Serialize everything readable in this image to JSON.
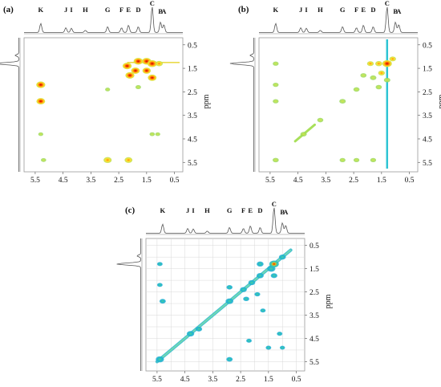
{
  "chart_data": [
    {
      "type": "heatmap",
      "panel_label": "(a)",
      "axis_unit": "ppm",
      "x_ticks": [
        "5.5",
        "4.5",
        "3.5",
        "2.5",
        "1.5",
        "0.5"
      ],
      "y_ticks": [
        "0.5",
        "1.5",
        "2.5",
        "3.5",
        "4.5",
        "5.5"
      ],
      "peak_labels": [
        {
          "text": "K",
          "x": 5.3
        },
        {
          "text": "J",
          "x": 4.4
        },
        {
          "text": "I",
          "x": 4.2
        },
        {
          "text": "H",
          "x": 3.7
        },
        {
          "text": "G",
          "x": 2.9
        },
        {
          "text": "F",
          "x": 2.4
        },
        {
          "text": "E",
          "x": 2.15
        },
        {
          "text": "D",
          "x": 1.8
        },
        {
          "text": "C",
          "x": 1.3
        },
        {
          "text": "B",
          "x": 1.0
        },
        {
          "text": "A",
          "x": 0.88
        }
      ],
      "peaks": [
        {
          "x": 5.3,
          "y": 2.2,
          "i": 0.9
        },
        {
          "x": 5.3,
          "y": 2.9,
          "i": 0.85
        },
        {
          "x": 5.3,
          "y": 4.3,
          "i": 0.2
        },
        {
          "x": 5.2,
          "y": 5.4,
          "i": 0.25
        },
        {
          "x": 2.9,
          "y": 5.4,
          "i": 0.75
        },
        {
          "x": 2.15,
          "y": 5.4,
          "i": 0.7
        },
        {
          "x": 2.2,
          "y": 1.4,
          "i": 0.9
        },
        {
          "x": 1.8,
          "y": 1.2,
          "i": 0.95
        },
        {
          "x": 1.5,
          "y": 1.2,
          "i": 0.95
        },
        {
          "x": 1.3,
          "y": 1.3,
          "i": 1.0
        },
        {
          "x": 1.9,
          "y": 1.6,
          "i": 0.85
        },
        {
          "x": 1.5,
          "y": 1.6,
          "i": 0.8
        },
        {
          "x": 2.1,
          "y": 1.8,
          "i": 0.9
        },
        {
          "x": 1.3,
          "y": 1.9,
          "i": 0.85
        },
        {
          "x": 1.05,
          "y": 1.3,
          "i": 0.6
        },
        {
          "x": 1.8,
          "y": 2.3,
          "i": 0.3
        },
        {
          "x": 1.3,
          "y": 4.3,
          "i": 0.25
        },
        {
          "x": 1.1,
          "y": 4.3,
          "i": 0.2
        },
        {
          "x": 2.9,
          "y": 2.4,
          "i": 0.2
        }
      ]
    },
    {
      "type": "heatmap",
      "panel_label": "(b)",
      "axis_unit": "ppm",
      "x_ticks": [
        "5.5",
        "4.5",
        "3.5",
        "2.5",
        "1.5",
        "0.5"
      ],
      "y_ticks": [
        "0.5",
        "1.5",
        "2.5",
        "3.5",
        "4.5",
        "5.5"
      ],
      "peak_labels": [
        {
          "text": "K",
          "x": 5.3
        },
        {
          "text": "J",
          "x": 4.4
        },
        {
          "text": "I",
          "x": 4.2
        },
        {
          "text": "H",
          "x": 3.7
        },
        {
          "text": "G",
          "x": 2.9
        },
        {
          "text": "F",
          "x": 2.4
        },
        {
          "text": "E",
          "x": 2.15
        },
        {
          "text": "D",
          "x": 1.8
        },
        {
          "text": "C",
          "x": 1.3
        },
        {
          "text": "B",
          "x": 1.0
        },
        {
          "text": "A",
          "x": 0.88
        }
      ],
      "peaks": [
        {
          "x": 5.3,
          "y": 1.3,
          "i": 0.35
        },
        {
          "x": 5.3,
          "y": 2.2,
          "i": 0.35
        },
        {
          "x": 5.3,
          "y": 2.9,
          "i": 0.35
        },
        {
          "x": 5.3,
          "y": 5.4,
          "i": 0.4
        },
        {
          "x": 4.3,
          "y": 4.3,
          "i": 0.45
        },
        {
          "x": 3.7,
          "y": 3.7,
          "i": 0.4
        },
        {
          "x": 2.9,
          "y": 2.9,
          "i": 0.45
        },
        {
          "x": 2.9,
          "y": 5.4,
          "i": 0.35
        },
        {
          "x": 2.4,
          "y": 5.4,
          "i": 0.35
        },
        {
          "x": 1.8,
          "y": 5.4,
          "i": 0.35
        },
        {
          "x": 2.4,
          "y": 2.4,
          "i": 0.4
        },
        {
          "x": 2.15,
          "y": 1.8,
          "i": 0.4
        },
        {
          "x": 1.9,
          "y": 1.3,
          "i": 0.5
        },
        {
          "x": 1.6,
          "y": 1.3,
          "i": 0.55
        },
        {
          "x": 1.3,
          "y": 1.3,
          "i": 1.0
        },
        {
          "x": 1.1,
          "y": 1.1,
          "i": 0.5
        },
        {
          "x": 1.8,
          "y": 1.9,
          "i": 0.45
        },
        {
          "x": 1.5,
          "y": 1.7,
          "i": 0.5
        },
        {
          "x": 1.3,
          "y": 2.0,
          "i": 0.45
        },
        {
          "x": 1.6,
          "y": 2.3,
          "i": 0.4
        }
      ]
    },
    {
      "type": "heatmap",
      "panel_label": "(c)",
      "axis_unit": "ppm",
      "x_ticks": [
        "5.5",
        "4.5",
        "3.5",
        "2.5",
        "1.5",
        "0.5"
      ],
      "y_ticks": [
        "0.5",
        "1.5",
        "2.5",
        "3.5",
        "4.5",
        "5.5"
      ],
      "peak_labels": [
        {
          "text": "K",
          "x": 5.3
        },
        {
          "text": "J",
          "x": 4.4
        },
        {
          "text": "I",
          "x": 4.2
        },
        {
          "text": "H",
          "x": 3.7
        },
        {
          "text": "G",
          "x": 2.9
        },
        {
          "text": "F",
          "x": 2.4
        },
        {
          "text": "E",
          "x": 2.15
        },
        {
          "text": "D",
          "x": 1.8
        },
        {
          "text": "C",
          "x": 1.3
        },
        {
          "text": "B",
          "x": 1.0
        },
        {
          "text": "A",
          "x": 0.88
        }
      ],
      "peaks": [
        {
          "x": 5.4,
          "y": 5.4,
          "i": 0.8
        },
        {
          "x": 4.3,
          "y": 4.3,
          "i": 0.65
        },
        {
          "x": 4.0,
          "y": 4.1,
          "i": 0.5
        },
        {
          "x": 2.9,
          "y": 2.9,
          "i": 0.7
        },
        {
          "x": 2.4,
          "y": 2.4,
          "i": 0.55
        },
        {
          "x": 2.1,
          "y": 2.1,
          "i": 0.55
        },
        {
          "x": 1.8,
          "y": 1.8,
          "i": 0.6
        },
        {
          "x": 1.4,
          "y": 1.5,
          "i": 0.8
        },
        {
          "x": 1.3,
          "y": 1.3,
          "i": 1.0
        },
        {
          "x": 5.3,
          "y": 2.9,
          "i": 0.45
        },
        {
          "x": 5.4,
          "y": 2.2,
          "i": 0.3
        },
        {
          "x": 5.4,
          "y": 1.3,
          "i": 0.3
        },
        {
          "x": 2.9,
          "y": 5.4,
          "i": 0.45
        },
        {
          "x": 2.9,
          "y": 2.3,
          "i": 0.4
        },
        {
          "x": 2.3,
          "y": 2.8,
          "i": 0.4
        },
        {
          "x": 1.8,
          "y": 1.3,
          "i": 0.55
        },
        {
          "x": 1.3,
          "y": 1.8,
          "i": 0.5
        },
        {
          "x": 1.0,
          "y": 1.0,
          "i": 0.55
        },
        {
          "x": 1.1,
          "y": 4.3,
          "i": 0.3
        },
        {
          "x": 1.5,
          "y": 4.9,
          "i": 0.3
        },
        {
          "x": 1.0,
          "y": 4.9,
          "i": 0.25
        },
        {
          "x": 2.2,
          "y": 4.6,
          "i": 0.3
        },
        {
          "x": 1.7,
          "y": 3.3,
          "i": 0.3
        },
        {
          "x": 1.9,
          "y": 2.6,
          "i": 0.35
        }
      ]
    }
  ]
}
